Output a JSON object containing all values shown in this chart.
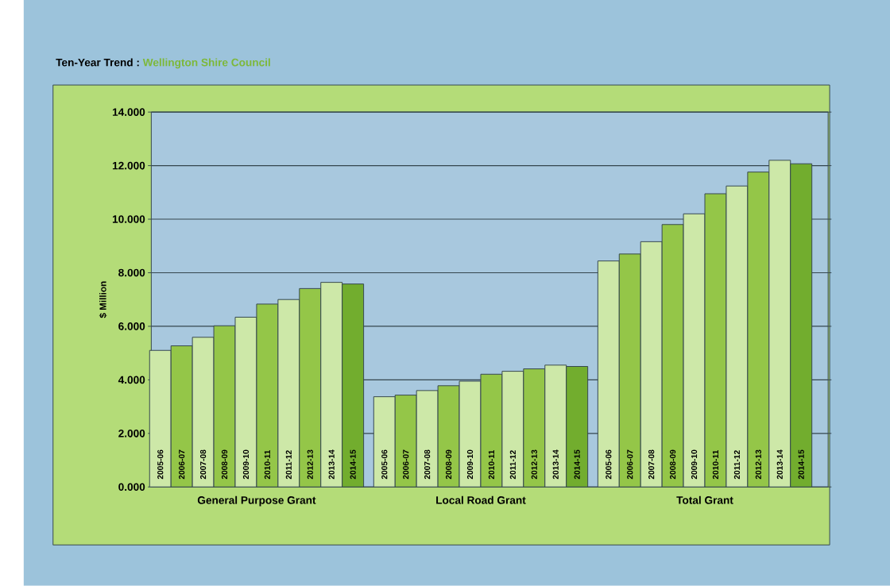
{
  "chart_data": {
    "type": "bar",
    "title": "Ten-Year Trend :",
    "subtitle": "Wellington Shire Council",
    "ylabel": "$ Million",
    "categories": [
      "General Purpose Grant",
      "Local Road Grant",
      "Total Grant"
    ],
    "series": [
      {
        "name": "2005-06",
        "color": "#cde8a8",
        "values": [
          5.1,
          3.37,
          8.44
        ]
      },
      {
        "name": "2006-07",
        "color": "#94c648",
        "values": [
          5.27,
          3.43,
          8.7
        ]
      },
      {
        "name": "2007-08",
        "color": "#cde8a8",
        "values": [
          5.59,
          3.6,
          9.16
        ]
      },
      {
        "name": "2008-09",
        "color": "#94c648",
        "values": [
          6.02,
          3.78,
          9.8
        ]
      },
      {
        "name": "2009-10",
        "color": "#cde8a8",
        "values": [
          6.34,
          3.95,
          10.2
        ]
      },
      {
        "name": "2010-11",
        "color": "#94c648",
        "values": [
          6.83,
          4.21,
          10.95
        ]
      },
      {
        "name": "2011-12",
        "color": "#cde8a8",
        "values": [
          7.0,
          4.32,
          11.24
        ]
      },
      {
        "name": "2012-13",
        "color": "#94c648",
        "values": [
          7.41,
          4.41,
          11.76
        ]
      },
      {
        "name": "2013-14",
        "color": "#cde8a8",
        "values": [
          7.64,
          4.55,
          12.2
        ]
      },
      {
        "name": "2014-15",
        "color": "#72ad2e",
        "values": [
          7.58,
          4.5,
          12.07
        ]
      }
    ],
    "ylim": [
      0,
      14
    ],
    "yticks": [
      {
        "value": 0,
        "label": "0.000"
      },
      {
        "value": 2,
        "label": "2.000"
      },
      {
        "value": 4,
        "label": "4.000"
      },
      {
        "value": 6,
        "label": "6.000"
      },
      {
        "value": 8,
        "label": "8.000"
      },
      {
        "value": 10,
        "label": "10.000"
      },
      {
        "value": 12,
        "label": "12.000"
      },
      {
        "value": 14,
        "label": "14.000"
      }
    ],
    "grid": "y",
    "legend": false
  }
}
